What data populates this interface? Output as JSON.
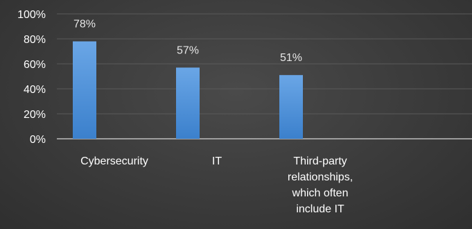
{
  "chart_data": {
    "type": "bar",
    "categories": [
      [
        "Cybersecurity"
      ],
      [
        "IT"
      ],
      [
        "Third-party",
        "relationships,",
        "which often",
        "include IT"
      ]
    ],
    "values": [
      78,
      57,
      51
    ],
    "data_labels": [
      "78%",
      "57%",
      "51%"
    ],
    "ylim": [
      0,
      100
    ],
    "yticks": [
      0,
      20,
      40,
      60,
      80,
      100
    ],
    "ytick_labels": [
      "0%",
      "20%",
      "40%",
      "60%",
      "80%",
      "100%"
    ],
    "grid": true,
    "legend": "none",
    "title": "",
    "xlabel": "",
    "ylabel": "",
    "colors": {
      "bar_top": "#6aa6e6",
      "bar_bottom": "#3b80cc",
      "gridline": "#5a5a5a",
      "axis": "#bdbdbd",
      "background": "#3b3b3b"
    }
  }
}
